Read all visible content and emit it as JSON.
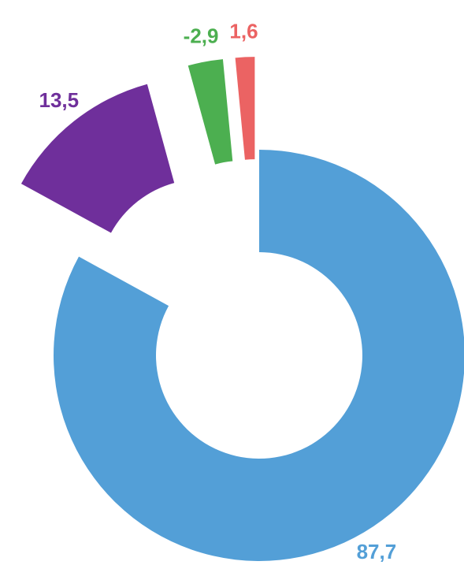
{
  "chart_data": {
    "type": "donut",
    "categories": [
      null,
      null,
      null,
      null
    ],
    "values": [
      87.7,
      13.5,
      -2.9,
      1.6
    ],
    "value_labels": [
      "87,7",
      "13,5",
      "-2,9",
      "1,6"
    ],
    "colors": [
      "#539fd7",
      "#6f2f9b",
      "#4caf50",
      "#eb6363"
    ],
    "exploded": [
      false,
      true,
      true,
      true
    ]
  }
}
